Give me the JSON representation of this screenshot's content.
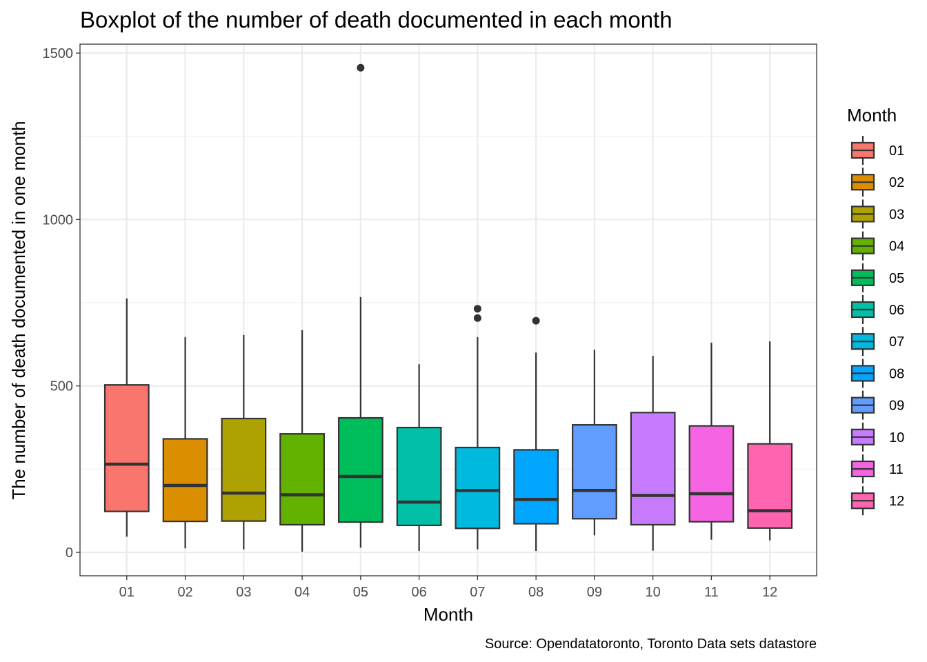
{
  "chart_data": {
    "type": "boxplot",
    "title": "Boxplot of the number of death documented in each month",
    "xlabel": "Month",
    "ylabel": "The number of death documented in one month",
    "caption": "Source: Opendatatoronto, Toronto Data sets datastore",
    "ylim": [
      -70,
      1520
    ],
    "yticks": [
      0,
      500,
      1000,
      1500
    ],
    "grid": true,
    "legend": {
      "title": "Month",
      "placement": "right"
    },
    "categories": [
      "01",
      "02",
      "03",
      "04",
      "05",
      "06",
      "07",
      "08",
      "09",
      "10",
      "11",
      "12"
    ],
    "colors": [
      "#F8766D",
      "#DB8E00",
      "#AEA200",
      "#64B200",
      "#00BD5C",
      "#00C1A7",
      "#00BADE",
      "#00A6FF",
      "#619CFF",
      "#C77CFF",
      "#F564E3",
      "#FF64B0"
    ],
    "boxes": [
      {
        "month": "01",
        "min": 47,
        "q1": 123,
        "median": 265,
        "q3": 503,
        "max": 763,
        "outliers": []
      },
      {
        "month": "02",
        "min": 12,
        "q1": 93,
        "median": 201,
        "q3": 341,
        "max": 647,
        "outliers": []
      },
      {
        "month": "03",
        "min": 9,
        "q1": 94,
        "median": 178,
        "q3": 402,
        "max": 653,
        "outliers": []
      },
      {
        "month": "04",
        "min": 2,
        "q1": 83,
        "median": 173,
        "q3": 356,
        "max": 668,
        "outliers": []
      },
      {
        "month": "05",
        "min": 14,
        "q1": 91,
        "median": 228,
        "q3": 404,
        "max": 767,
        "outliers": [
          1456
        ]
      },
      {
        "month": "06",
        "min": 4,
        "q1": 81,
        "median": 151,
        "q3": 375,
        "max": 565,
        "outliers": []
      },
      {
        "month": "07",
        "min": 9,
        "q1": 72,
        "median": 186,
        "q3": 315,
        "max": 647,
        "outliers": [
          732,
          704
        ]
      },
      {
        "month": "08",
        "min": 4,
        "q1": 86,
        "median": 159,
        "q3": 308,
        "max": 600,
        "outliers": [
          696
        ]
      },
      {
        "month": "09",
        "min": 51,
        "q1": 101,
        "median": 186,
        "q3": 383,
        "max": 609,
        "outliers": []
      },
      {
        "month": "10",
        "min": 5,
        "q1": 83,
        "median": 171,
        "q3": 420,
        "max": 590,
        "outliers": []
      },
      {
        "month": "11",
        "min": 38,
        "q1": 92,
        "median": 176,
        "q3": 380,
        "max": 630,
        "outliers": []
      },
      {
        "month": "12",
        "min": 36,
        "q1": 73,
        "median": 125,
        "q3": 326,
        "max": 634,
        "outliers": []
      }
    ]
  }
}
